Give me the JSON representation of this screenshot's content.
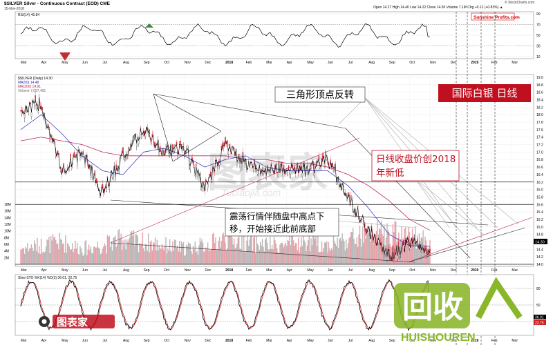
{
  "header": {
    "symbol_line": "$SILVER Silver - Continuous Contract (EOD) CME",
    "date": "15-Nov-2018",
    "ohlc": "Open 14.27  High 14.40  Low 14.22  Close 14.30  Volume 7.1M  Chg +0.12 (+0.83%) ▲",
    "source": "© StockCharts.com",
    "brand": "Sunshine Profits.com"
  },
  "rsi_panel": {
    "label": "RSI(14) 46.84",
    "ticks": [
      "90",
      "70",
      "50",
      "30",
      "10"
    ]
  },
  "price_panel": {
    "legend": [
      "$SILVER (Daily) 14.30",
      "MA(50) 14.48",
      "MA(200) 14.91",
      "Volume 7,057,491"
    ],
    "price_ticks": [
      "19.0",
      "18.8",
      "18.6",
      "18.4",
      "18.2",
      "18.0",
      "17.8",
      "17.6",
      "17.4",
      "17.2",
      "17.0",
      "16.8",
      "16.6",
      "16.4",
      "16.2",
      "16.0",
      "15.8",
      "15.6",
      "15.4",
      "15.2",
      "15.0",
      "14.8",
      "14.6",
      "14.4",
      "14.2",
      "14.0"
    ],
    "last_price": "14.30",
    "volume_ticks": [
      "18M",
      "16M",
      "14M",
      "12M",
      "10M",
      "8M",
      "6M",
      "4M",
      "2M"
    ]
  },
  "sto_panel": {
    "label": "Slow STO %K(14) %D(3) 36.01, 22.75",
    "ticks": [
      "80",
      "50",
      "20"
    ],
    "last_values": [
      "36.01",
      "22.75"
    ]
  },
  "x_axis": {
    "top_labels": [
      "Mar",
      "Apr",
      "May",
      "Jun",
      "Jul",
      "Aug",
      "Sep",
      "Oct",
      "Nov",
      "Dec",
      "2018",
      "Feb",
      "Mar",
      "Apr",
      "May",
      "Jun",
      "Jul",
      "Aug",
      "Sep",
      "Oct",
      "Nov",
      "Dec",
      "2019",
      "Feb",
      "Mar"
    ],
    "bottom_labels": [
      "Mar",
      "Apr",
      "May",
      "Jun",
      "Jul",
      "Aug",
      "Sep",
      "Oct",
      "Nov",
      "Dec",
      "2018",
      "Feb",
      "Mar",
      "Apr",
      "May",
      "Jun",
      "Jul",
      "Aug",
      "Sep",
      "Oct",
      "Nov",
      "Dec",
      "2019",
      "Feb",
      "Mar"
    ]
  },
  "annotations": {
    "title_box": "国际白银  日线",
    "triangle": "三角形顶点反转",
    "new_low_line1": "日线收盘价创2018",
    "new_low_line2": "年新低",
    "consolidation_line1": "震荡行情伴随盘中高点下",
    "consolidation_line2": "移，开始接近此前底部"
  },
  "watermarks": {
    "center": "图表家",
    "center_url": "Tubiaojia.com",
    "bottom_logo": "图表家",
    "bottom_url": "Tubiaojia.com",
    "huishou_big": "回收",
    "huishou_url": "HUISHOUREN"
  },
  "chart_data": {
    "type": "line",
    "title": "$SILVER Silver - Continuous Contract (EOD) CME",
    "x": [
      "2017-03",
      "2017-04",
      "2017-05",
      "2017-06",
      "2017-07",
      "2017-08",
      "2017-09",
      "2017-10",
      "2017-11",
      "2017-12",
      "2018-01",
      "2018-02",
      "2018-03",
      "2018-04",
      "2018-05",
      "2018-06",
      "2018-07",
      "2018-08",
      "2018-09",
      "2018-10",
      "2018-11"
    ],
    "series": [
      {
        "name": "$SILVER (Daily)",
        "values": [
          18.1,
          18.3,
          16.5,
          17.0,
          15.9,
          16.9,
          17.6,
          17.0,
          17.1,
          16.0,
          17.2,
          16.7,
          16.5,
          16.6,
          16.5,
          16.8,
          15.8,
          14.9,
          14.2,
          14.6,
          14.3
        ]
      },
      {
        "name": "MA(50)",
        "values": [
          17.6,
          18.0,
          17.5,
          16.9,
          16.5,
          16.4,
          17.0,
          17.1,
          16.9,
          16.6,
          16.8,
          16.9,
          16.6,
          16.5,
          16.5,
          16.5,
          16.1,
          15.5,
          14.8,
          14.5,
          14.48
        ]
      },
      {
        "name": "MA(200)",
        "values": [
          17.3,
          17.4,
          17.3,
          17.2,
          17.0,
          16.9,
          16.9,
          16.9,
          16.9,
          16.9,
          16.9,
          16.8,
          16.8,
          16.7,
          16.7,
          16.6,
          16.4,
          16.1,
          15.7,
          15.2,
          14.91
        ]
      }
    ],
    "xlabel": "",
    "ylabel": "",
    "ylim": [
      14.0,
      19.0
    ],
    "grid": true,
    "last_close": 14.3,
    "levels": [
      {
        "value": 16.2
      },
      {
        "value": 15.6
      },
      {
        "value": 14.0
      }
    ],
    "volume": {
      "name": "Volume",
      "unit": "M",
      "ylim": [
        0,
        18
      ],
      "values": [
        5,
        6,
        7,
        5,
        6,
        8,
        7,
        6,
        5,
        6,
        8,
        7,
        6,
        6,
        7,
        6,
        8,
        9,
        10,
        9,
        7.1
      ]
    },
    "rsi": {
      "name": "RSI(14)",
      "last": 46.84,
      "ylim": [
        10,
        90
      ]
    },
    "sto": {
      "name": "Slow STO",
      "k_last": 36.01,
      "d_last": 22.75,
      "ylim": [
        0,
        100
      ]
    }
  }
}
